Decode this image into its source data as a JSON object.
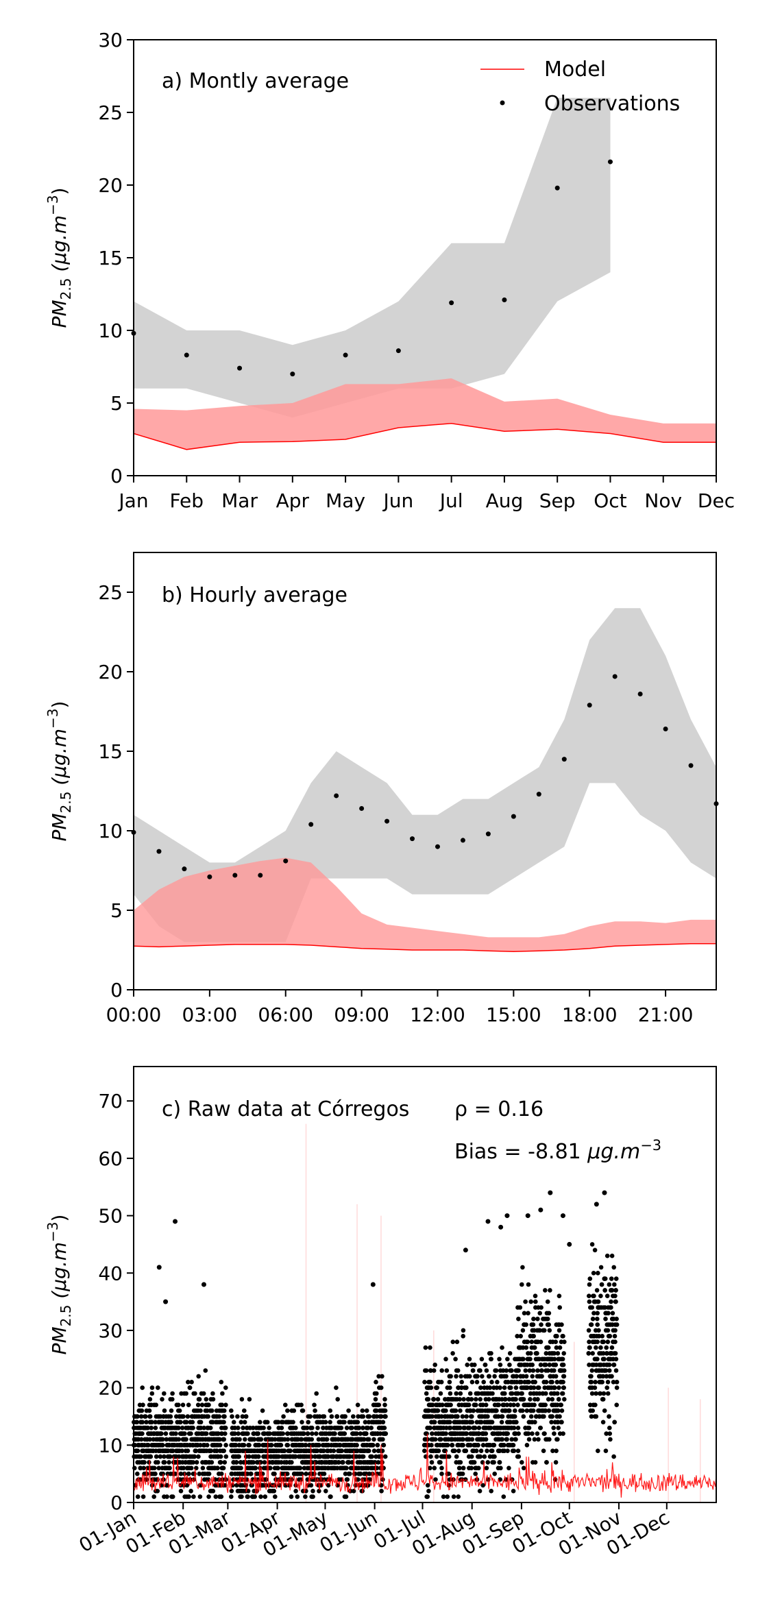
{
  "colors": {
    "model": "#ff0000",
    "model_band": "#ff9999",
    "obs": "#000000",
    "obs_band": "#d3d3d3"
  },
  "chart_data": [
    {
      "type": "line",
      "annotation": "a) Montly average",
      "ylabel": "PM2.5 (μg.m−3)",
      "ylabel_parts": {
        "a": "PM",
        "b": "2.5",
        "c": " (μg.m",
        "d": "−3",
        "e": ")"
      },
      "ylim": [
        0,
        30
      ],
      "yticks": [
        0,
        5,
        10,
        15,
        20,
        25,
        30
      ],
      "categories": [
        "Jan",
        "Feb",
        "Mar",
        "Apr",
        "May",
        "Jun",
        "Jul",
        "Aug",
        "Sep",
        "Oct",
        "Nov",
        "Dec"
      ],
      "legend": {
        "position": "top-right",
        "items": [
          "Model",
          "Observations"
        ]
      },
      "series": [
        {
          "name": "Model",
          "kind": "line",
          "values": [
            2.9,
            1.8,
            2.3,
            2.35,
            2.5,
            3.3,
            3.6,
            3.05,
            3.2,
            2.9,
            2.3,
            2.3
          ],
          "band_low": [
            2.9,
            1.8,
            2.3,
            2.35,
            2.5,
            3.3,
            3.6,
            3.05,
            3.2,
            2.9,
            2.3,
            2.3
          ],
          "band_high": [
            4.6,
            4.5,
            4.8,
            5.0,
            6.3,
            6.3,
            6.7,
            5.1,
            5.3,
            4.2,
            3.6,
            3.6
          ]
        },
        {
          "name": "Observations",
          "kind": "points",
          "values": [
            9.8,
            8.3,
            7.4,
            7.0,
            8.3,
            8.6,
            11.9,
            12.1,
            19.8,
            21.6,
            null,
            null
          ],
          "band_low": [
            6.0,
            6.0,
            5.0,
            4.0,
            5.0,
            6.0,
            6.0,
            7.0,
            12.0,
            14.0,
            null,
            null
          ],
          "band_high": [
            12.0,
            10.0,
            10.0,
            9.0,
            10.0,
            12.0,
            16.0,
            16.0,
            26.0,
            26.0,
            null,
            null
          ]
        }
      ]
    },
    {
      "type": "line",
      "annotation": "b) Hourly average",
      "ylabel": "PM2.5 (μg.m−3)",
      "ylim": [
        0,
        27.5
      ],
      "yticks": [
        0,
        5,
        10,
        15,
        20,
        25
      ],
      "xlim": [
        0,
        23
      ],
      "xticks": [
        0,
        3,
        6,
        9,
        12,
        15,
        18,
        21
      ],
      "xticklabels": [
        "00:00",
        "03:00",
        "06:00",
        "09:00",
        "12:00",
        "15:00",
        "18:00",
        "21:00"
      ],
      "series": [
        {
          "name": "Model",
          "kind": "line",
          "values": [
            2.75,
            2.7,
            2.75,
            2.8,
            2.85,
            2.85,
            2.85,
            2.8,
            2.7,
            2.6,
            2.55,
            2.5,
            2.5,
            2.5,
            2.45,
            2.4,
            2.45,
            2.5,
            2.6,
            2.75,
            2.8,
            2.85,
            2.9,
            2.9
          ],
          "band_low": [
            2.75,
            2.7,
            2.75,
            2.8,
            2.85,
            2.85,
            2.85,
            2.8,
            2.7,
            2.6,
            2.55,
            2.5,
            2.5,
            2.5,
            2.45,
            2.4,
            2.45,
            2.5,
            2.6,
            2.75,
            2.8,
            2.85,
            2.9,
            2.9
          ],
          "band_high": [
            5.0,
            6.3,
            7.1,
            7.5,
            7.8,
            8.1,
            8.3,
            8.0,
            6.5,
            4.8,
            4.1,
            3.9,
            3.7,
            3.5,
            3.3,
            3.3,
            3.3,
            3.5,
            4.0,
            4.3,
            4.3,
            4.2,
            4.4,
            4.4
          ]
        },
        {
          "name": "Observations",
          "kind": "points",
          "values": [
            9.9,
            8.7,
            7.6,
            7.1,
            7.2,
            7.2,
            8.1,
            10.4,
            12.2,
            11.4,
            10.6,
            9.5,
            9.0,
            9.4,
            9.8,
            10.9,
            12.3,
            14.5,
            17.9,
            19.7,
            18.6,
            16.4,
            14.1,
            11.7
          ],
          "band_low": [
            6.0,
            4.0,
            3.0,
            3.0,
            3.0,
            3.0,
            3.0,
            7.0,
            7.0,
            7.0,
            7.0,
            6.0,
            6.0,
            6.0,
            6.0,
            7.0,
            8.0,
            9.0,
            13.0,
            13.0,
            11.0,
            10.0,
            8.0,
            7.0
          ],
          "band_high": [
            11.0,
            10.0,
            9.0,
            8.0,
            8.0,
            9.0,
            10.0,
            13.0,
            15.0,
            14.0,
            13.0,
            11.0,
            11.0,
            12.0,
            12.0,
            13.0,
            14.0,
            17.0,
            22.0,
            24.0,
            24.0,
            21.0,
            17.0,
            14.0
          ]
        }
      ]
    },
    {
      "type": "scatter",
      "annotation": "c) Raw data at Córregos",
      "rho_label": "ρ = 0.16",
      "bias_label": "Bias = -8.81 μg.m−3",
      "bias_parts": {
        "a": "Bias = -8.81 ",
        "b": "μg.m",
        "c": "−3"
      },
      "ylabel": "PM2.5 (μg.m−3)",
      "ylim": [
        0,
        76
      ],
      "yticks": [
        0,
        10,
        20,
        30,
        40,
        50,
        60,
        70
      ],
      "xlim_days": [
        0,
        365
      ],
      "xticks_days": [
        0,
        31,
        59,
        90,
        120,
        151,
        181,
        212,
        243,
        273,
        304,
        334
      ],
      "xticklabels": [
        "01-Jan",
        "01-Feb",
        "01-Mar",
        "01-Apr",
        "01-May",
        "01-Jun",
        "01-Jul",
        "01-Aug",
        "01-Sep",
        "01-Oct",
        "01-Nov",
        "01-Dec"
      ],
      "segments": [
        {
          "day_start": 0,
          "day_end": 31,
          "mean": 10,
          "spread": 6,
          "max": 27
        },
        {
          "day_start": 31,
          "day_end": 58,
          "mean": 10,
          "spread": 7,
          "max": 30
        },
        {
          "day_start": 61,
          "day_end": 89,
          "mean": 8,
          "spread": 5,
          "max": 22
        },
        {
          "day_start": 89,
          "day_end": 150,
          "mean": 9,
          "spread": 5,
          "max": 25
        },
        {
          "day_start": 150,
          "day_end": 158,
          "mean": 12,
          "spread": 7,
          "max": 38
        },
        {
          "day_start": 182,
          "day_end": 212,
          "mean": 14,
          "spread": 8,
          "max": 37
        },
        {
          "day_start": 212,
          "day_end": 240,
          "mean": 15,
          "spread": 8,
          "max": 35
        },
        {
          "day_start": 240,
          "day_end": 270,
          "mean": 22,
          "spread": 10,
          "max": 50
        },
        {
          "day_start": 285,
          "day_end": 303,
          "mean": 27,
          "spread": 11,
          "max": 54
        }
      ],
      "outliers": [
        {
          "day": 16,
          "value": 41
        },
        {
          "day": 20,
          "value": 35
        },
        {
          "day": 26,
          "value": 49
        },
        {
          "day": 44,
          "value": 38
        },
        {
          "day": 150,
          "value": 38
        },
        {
          "day": 208,
          "value": 44
        },
        {
          "day": 222,
          "value": 49
        },
        {
          "day": 230,
          "value": 48
        },
        {
          "day": 234,
          "value": 50
        },
        {
          "day": 247,
          "value": 50
        },
        {
          "day": 255,
          "value": 51
        },
        {
          "day": 261,
          "value": 54
        },
        {
          "day": 269,
          "value": 50
        },
        {
          "day": 273,
          "value": 45
        },
        {
          "day": 295,
          "value": 54
        },
        {
          "day": 290,
          "value": 52
        }
      ],
      "model_line": {
        "mean": 3.5,
        "spread": 1.2,
        "spikes": [
          {
            "day": 25,
            "value": 8
          },
          {
            "day": 70,
            "value": 9
          },
          {
            "day": 84,
            "value": 11
          },
          {
            "day": 111,
            "value": 10
          },
          {
            "day": 138,
            "value": 9
          },
          {
            "day": 155,
            "value": 10
          },
          {
            "day": 184,
            "value": 12
          },
          {
            "day": 196,
            "value": 9
          },
          {
            "day": 246,
            "value": 8
          },
          {
            "day": 262,
            "value": 7
          },
          {
            "day": 300,
            "value": 7
          }
        ]
      },
      "model_light_spikes": [
        {
          "day": 108,
          "value": 66
        },
        {
          "day": 140,
          "value": 52
        },
        {
          "day": 155,
          "value": 50
        },
        {
          "day": 188,
          "value": 30
        },
        {
          "day": 276,
          "value": 28
        },
        {
          "day": 335,
          "value": 20
        },
        {
          "day": 355,
          "value": 18
        }
      ]
    }
  ]
}
